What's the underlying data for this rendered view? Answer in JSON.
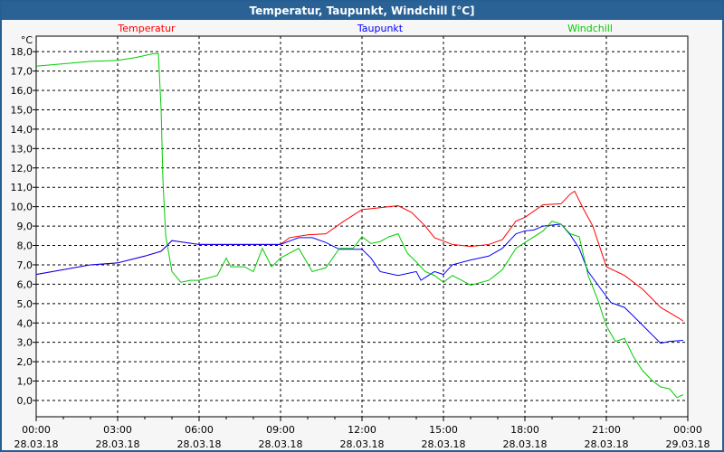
{
  "window": {
    "title": "Temperatur, Taupunkt, Windchill [°C]"
  },
  "chart_data": {
    "type": "line",
    "title": "Temperatur, Taupunkt, Windchill [°C]",
    "ylabel": "°C",
    "ylim": [
      -0.84,
      18.8
    ],
    "xlim": [
      0,
      24
    ],
    "grid": true,
    "yticks": [
      0,
      1,
      2,
      3,
      4,
      5,
      6,
      7,
      8,
      9,
      10,
      11,
      12,
      13,
      14,
      15,
      16,
      17,
      18
    ],
    "ytick_labels": [
      "0,0",
      "1,0",
      "2,0",
      "3,0",
      "4,0",
      "5,0",
      "6,0",
      "7,0",
      "8,0",
      "9,0",
      "10,0",
      "11,0",
      "12,0",
      "13,0",
      "14,0",
      "15,0",
      "16,0",
      "17,0",
      "18,0"
    ],
    "xticks": [
      0,
      3,
      6,
      9,
      12,
      15,
      18,
      21,
      24
    ],
    "xtick_times": [
      "00:00",
      "03:00",
      "06:00",
      "09:00",
      "12:00",
      "15:00",
      "18:00",
      "21:00",
      "00:00"
    ],
    "xtick_dates": [
      "28.03.18",
      "28.03.18",
      "28.03.18",
      "28.03.18",
      "28.03.18",
      "28.03.18",
      "28.03.18",
      "28.03.18",
      "29.03.18"
    ],
    "series": [
      {
        "name": "Temperatur",
        "color": "#ff0000",
        "legend": "left",
        "points": [
          [
            0,
            6.5
          ],
          [
            2,
            7.0
          ],
          [
            3,
            7.1
          ],
          [
            4,
            7.45
          ],
          [
            4.6,
            7.7
          ],
          [
            5,
            8.25
          ],
          [
            6,
            8.05
          ],
          [
            7,
            8.05
          ],
          [
            8,
            8.05
          ],
          [
            9,
            8.05
          ],
          [
            9.33,
            8.4
          ],
          [
            10,
            8.55
          ],
          [
            10.67,
            8.6
          ],
          [
            11.33,
            9.25
          ],
          [
            12,
            9.85
          ],
          [
            12.67,
            9.95
          ],
          [
            13.33,
            10.05
          ],
          [
            13.83,
            9.7
          ],
          [
            14.33,
            9.0
          ],
          [
            14.67,
            8.4
          ],
          [
            15.33,
            8.05
          ],
          [
            16,
            7.95
          ],
          [
            16.67,
            8.05
          ],
          [
            17.17,
            8.3
          ],
          [
            17.67,
            9.25
          ],
          [
            18,
            9.45
          ],
          [
            18.67,
            10.1
          ],
          [
            19.33,
            10.15
          ],
          [
            19.67,
            10.65
          ],
          [
            19.83,
            10.8
          ],
          [
            20.17,
            9.85
          ],
          [
            20.5,
            9.0
          ],
          [
            21,
            6.9
          ],
          [
            21.67,
            6.45
          ],
          [
            22.33,
            5.75
          ],
          [
            23,
            4.8
          ],
          [
            23.67,
            4.25
          ],
          [
            23.83,
            4.1
          ]
        ]
      },
      {
        "name": "Taupunkt",
        "color": "#0000ff",
        "legend": "center",
        "points": [
          [
            0,
            6.5
          ],
          [
            2,
            7.0
          ],
          [
            3,
            7.1
          ],
          [
            4,
            7.45
          ],
          [
            4.6,
            7.7
          ],
          [
            5,
            8.25
          ],
          [
            6,
            8.05
          ],
          [
            7,
            8.05
          ],
          [
            8,
            8.05
          ],
          [
            9,
            8.05
          ],
          [
            9.67,
            8.4
          ],
          [
            10.17,
            8.4
          ],
          [
            10.67,
            8.15
          ],
          [
            11.17,
            7.8
          ],
          [
            12,
            7.8
          ],
          [
            12.33,
            7.35
          ],
          [
            12.67,
            6.65
          ],
          [
            13.33,
            6.45
          ],
          [
            14,
            6.65
          ],
          [
            14.17,
            6.2
          ],
          [
            14.67,
            6.65
          ],
          [
            15,
            6.5
          ],
          [
            15.33,
            7.0
          ],
          [
            16,
            7.25
          ],
          [
            16.67,
            7.45
          ],
          [
            17.17,
            7.85
          ],
          [
            17.67,
            8.6
          ],
          [
            18,
            8.75
          ],
          [
            18.33,
            8.8
          ],
          [
            18.67,
            9.0
          ],
          [
            19.33,
            9.1
          ],
          [
            19.67,
            8.55
          ],
          [
            20,
            7.85
          ],
          [
            20.33,
            6.65
          ],
          [
            20.67,
            6.0
          ],
          [
            21.17,
            5.05
          ],
          [
            21.67,
            4.8
          ],
          [
            22,
            4.35
          ],
          [
            22.5,
            3.65
          ],
          [
            23,
            2.95
          ],
          [
            23.33,
            3.05
          ],
          [
            23.83,
            3.1
          ]
        ]
      },
      {
        "name": "Windchill",
        "color": "#00cc00",
        "legend": "right",
        "points": [
          [
            0,
            17.25
          ],
          [
            2,
            17.5
          ],
          [
            3,
            17.55
          ],
          [
            3.67,
            17.7
          ],
          [
            4.33,
            17.9
          ],
          [
            4.5,
            17.9
          ],
          [
            4.6,
            15.05
          ],
          [
            4.67,
            11.3
          ],
          [
            4.77,
            8.5
          ],
          [
            5,
            6.65
          ],
          [
            5.33,
            6.1
          ],
          [
            5.67,
            6.2
          ],
          [
            6,
            6.2
          ],
          [
            6.67,
            6.45
          ],
          [
            7,
            7.35
          ],
          [
            7.17,
            6.9
          ],
          [
            7.67,
            6.9
          ],
          [
            8,
            6.65
          ],
          [
            8.33,
            7.85
          ],
          [
            8.67,
            6.9
          ],
          [
            9,
            7.35
          ],
          [
            9.33,
            7.6
          ],
          [
            9.67,
            7.85
          ],
          [
            10.17,
            6.65
          ],
          [
            10.67,
            6.85
          ],
          [
            11.17,
            7.85
          ],
          [
            11.67,
            7.85
          ],
          [
            12,
            8.45
          ],
          [
            12.33,
            8.1
          ],
          [
            12.67,
            8.2
          ],
          [
            13,
            8.45
          ],
          [
            13.33,
            8.6
          ],
          [
            13.67,
            7.6
          ],
          [
            14,
            7.15
          ],
          [
            14.33,
            6.65
          ],
          [
            14.67,
            6.45
          ],
          [
            15,
            6.1
          ],
          [
            15.33,
            6.45
          ],
          [
            15.67,
            6.2
          ],
          [
            16,
            5.95
          ],
          [
            16.67,
            6.2
          ],
          [
            17.17,
            6.75
          ],
          [
            17.67,
            7.85
          ],
          [
            18,
            8.15
          ],
          [
            18.67,
            8.75
          ],
          [
            19,
            9.25
          ],
          [
            19.33,
            9.1
          ],
          [
            19.67,
            8.6
          ],
          [
            20,
            8.45
          ],
          [
            20.33,
            6.45
          ],
          [
            20.67,
            5.25
          ],
          [
            21,
            3.85
          ],
          [
            21.33,
            3.05
          ],
          [
            21.67,
            3.2
          ],
          [
            22,
            2.25
          ],
          [
            22.33,
            1.55
          ],
          [
            22.67,
            1.05
          ],
          [
            23,
            0.7
          ],
          [
            23.33,
            0.6
          ],
          [
            23.6,
            0.15
          ],
          [
            23.83,
            0.3
          ]
        ]
      }
    ]
  }
}
